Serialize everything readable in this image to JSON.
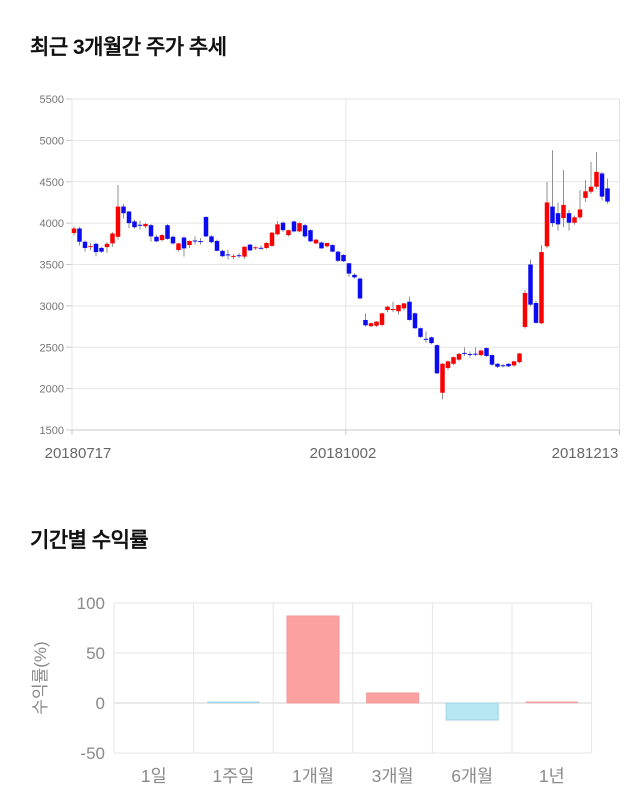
{
  "page": {
    "background": "#ffffff"
  },
  "chart_data": [
    {
      "type": "candlestick",
      "title": "최근 3개월간 주가 추세",
      "ylim": [
        1500,
        5500
      ],
      "y_ticks": [
        5500,
        5000,
        4500,
        4000,
        3500,
        3000,
        2500,
        2000,
        1500
      ],
      "x_tick_labels": [
        "20180717",
        "20181002",
        "20181213"
      ],
      "grid": true,
      "legend_position": "none",
      "colors": {
        "up": "#fb0000",
        "down": "#0b0bf2",
        "wick": "#909090",
        "grid": "#e5e5e5",
        "axis": "#c8c8c8",
        "tick_text": "#757575",
        "date_text": "#666666"
      },
      "candles_format": [
        "open",
        "high",
        "low",
        "close"
      ],
      "candles": [
        [
          3880,
          3960,
          3850,
          3935
        ],
        [
          3935,
          3955,
          3730,
          3775
        ],
        [
          3775,
          3790,
          3655,
          3700
        ],
        [
          3715,
          3760,
          3670,
          3722
        ],
        [
          3750,
          3760,
          3600,
          3650
        ],
        [
          3700,
          3715,
          3640,
          3655
        ],
        [
          3710,
          3770,
          3640,
          3750
        ],
        [
          3755,
          3890,
          3715,
          3875
        ],
        [
          3835,
          4460,
          3800,
          4200
        ],
        [
          4200,
          4230,
          4055,
          4120
        ],
        [
          4140,
          4150,
          3940,
          4000
        ],
        [
          4020,
          4040,
          3935,
          3950
        ],
        [
          3980,
          4030,
          3920,
          3973
        ],
        [
          3962,
          4000,
          3940,
          3990
        ],
        [
          3975,
          3990,
          3775,
          3840
        ],
        [
          3835,
          3860,
          3770,
          3780
        ],
        [
          3795,
          3870,
          3780,
          3855
        ],
        [
          3975,
          3990,
          3800,
          3810
        ],
        [
          3835,
          3850,
          3740,
          3755
        ],
        [
          3675,
          3760,
          3655,
          3755
        ],
        [
          3825,
          3840,
          3595,
          3695
        ],
        [
          3735,
          3790,
          3700,
          3785
        ],
        [
          3790,
          3840,
          3740,
          3786
        ],
        [
          3783,
          3820,
          3740,
          3778
        ],
        [
          4075,
          4080,
          3830,
          3840
        ],
        [
          3840,
          3855,
          3755,
          3770
        ],
        [
          3785,
          3800,
          3660,
          3665
        ],
        [
          3665,
          3680,
          3590,
          3600
        ],
        [
          3622,
          3680,
          3560,
          3616
        ],
        [
          3598,
          3625,
          3565,
          3604
        ],
        [
          3612,
          3640,
          3578,
          3606
        ],
        [
          3595,
          3720,
          3570,
          3715
        ],
        [
          3740,
          3750,
          3660,
          3670
        ],
        [
          3696,
          3720,
          3675,
          3708
        ],
        [
          3702,
          3730,
          3680,
          3696
        ],
        [
          3700,
          3770,
          3690,
          3760
        ],
        [
          3725,
          3890,
          3715,
          3885
        ],
        [
          3865,
          4025,
          3855,
          3985
        ],
        [
          4005,
          4020,
          3895,
          3915
        ],
        [
          3855,
          3920,
          3840,
          3915
        ],
        [
          4020,
          4030,
          3890,
          3900
        ],
        [
          3900,
          4010,
          3890,
          4000
        ],
        [
          3975,
          3990,
          3825,
          3840
        ],
        [
          3915,
          3925,
          3770,
          3780
        ],
        [
          3755,
          3810,
          3745,
          3800
        ],
        [
          3765,
          3780,
          3690,
          3695
        ],
        [
          3720,
          3765,
          3705,
          3760
        ],
        [
          3735,
          3745,
          3650,
          3655
        ],
        [
          3655,
          3665,
          3530,
          3545
        ],
        [
          3615,
          3625,
          3530,
          3540
        ],
        [
          3515,
          3520,
          3350,
          3390
        ],
        [
          3375,
          3395,
          3330,
          3345
        ],
        [
          3330,
          3340,
          3080,
          3090
        ],
        [
          2830,
          2910,
          2750,
          2765
        ],
        [
          2755,
          2800,
          2740,
          2790
        ],
        [
          2760,
          2815,
          2745,
          2810
        ],
        [
          2770,
          2915,
          2755,
          2910
        ],
        [
          2950,
          3000,
          2925,
          2990
        ],
        [
          2955,
          3050,
          2925,
          2962
        ],
        [
          2935,
          3015,
          2895,
          3010
        ],
        [
          2970,
          3035,
          2945,
          3030
        ],
        [
          3050,
          3110,
          2820,
          2830
        ],
        [
          2910,
          2920,
          2720,
          2730
        ],
        [
          2730,
          2740,
          2610,
          2625
        ],
        [
          2602,
          2690,
          2555,
          2596
        ],
        [
          2620,
          2630,
          2535,
          2550
        ],
        [
          2525,
          2535,
          2175,
          2185
        ],
        [
          1950,
          2310,
          1870,
          2300
        ],
        [
          2250,
          2340,
          2225,
          2330
        ],
        [
          2300,
          2390,
          2285,
          2380
        ],
        [
          2350,
          2430,
          2335,
          2420
        ],
        [
          2432,
          2500,
          2395,
          2426
        ],
        [
          2418,
          2450,
          2375,
          2408
        ],
        [
          2422,
          2500,
          2395,
          2416
        ],
        [
          2405,
          2470,
          2390,
          2460
        ],
        [
          2490,
          2500,
          2380,
          2395
        ],
        [
          2405,
          2415,
          2275,
          2290
        ],
        [
          2300,
          2310,
          2250,
          2265
        ],
        [
          2282,
          2300,
          2255,
          2276
        ],
        [
          2300,
          2305,
          2260,
          2270
        ],
        [
          2280,
          2335,
          2265,
          2330
        ],
        [
          2320,
          2430,
          2305,
          2425
        ],
        [
          2745,
          3190,
          2725,
          3155
        ],
        [
          3500,
          3560,
          2995,
          3015
        ],
        [
          3035,
          3060,
          2785,
          2795
        ],
        [
          2790,
          3735,
          2780,
          3650
        ],
        [
          3720,
          4500,
          3695,
          4250
        ],
        [
          4200,
          4880,
          3955,
          4000
        ],
        [
          4120,
          4250,
          3910,
          3985
        ],
        [
          4060,
          4640,
          3950,
          4220
        ],
        [
          4120,
          4160,
          3910,
          4005
        ],
        [
          4005,
          4090,
          3980,
          4070
        ],
        [
          4070,
          4400,
          4045,
          4165
        ],
        [
          4305,
          4520,
          4255,
          4385
        ],
        [
          4380,
          4740,
          4355,
          4440
        ],
        [
          4440,
          4860,
          4415,
          4620
        ],
        [
          4600,
          4620,
          4275,
          4320
        ],
        [
          4420,
          4540,
          4235,
          4260
        ]
      ]
    },
    {
      "type": "bar",
      "title": "기간별 수익률",
      "ylabel": "수익률(%)",
      "ylim": [
        -50,
        100
      ],
      "y_ticks": [
        100,
        50,
        0,
        -50
      ],
      "grid": true,
      "legend_position": "none",
      "categories": [
        "1일",
        "1주일",
        "1개월",
        "3개월",
        "6개월",
        "1년"
      ],
      "values": [
        null,
        0,
        87,
        10,
        -17,
        0
      ],
      "bar_colors": [
        "none",
        "blue",
        "pink",
        "pink",
        "blue",
        "pink"
      ],
      "colors": {
        "pink_fill": "#fda0a0",
        "pink_stroke": "#f0999a",
        "blue_fill": "#b6e7f2",
        "blue_stroke": "#9fd3e3",
        "grid": "#e5e5e5",
        "zero_line": "#d2d2d2",
        "label_text": "#8a8a8a"
      }
    }
  ]
}
